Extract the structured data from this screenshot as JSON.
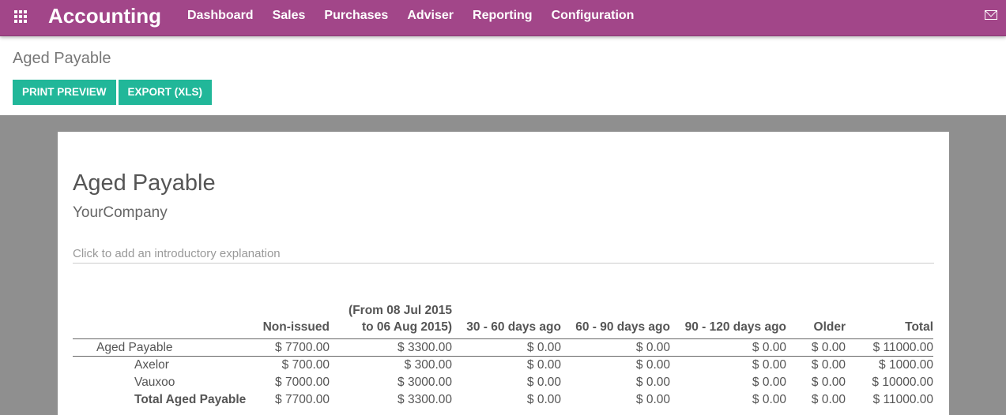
{
  "topbar": {
    "app": "Accounting",
    "menu": [
      "Dashboard",
      "Sales",
      "Purchases",
      "Adviser",
      "Reporting",
      "Configuration"
    ],
    "icons": [
      "apps-grid-icon",
      "mail-icon"
    ]
  },
  "page": {
    "title": "Aged Payable",
    "buttons": [
      "PRINT PREVIEW",
      "EXPORT (XLS)"
    ]
  },
  "report": {
    "title": "Aged Payable",
    "company": "YourCompany",
    "intro_placeholder": "Click to add an introductory explanation",
    "columns": [
      "",
      "Non-issued",
      "(From 08 Jul 2015 to 06 Aug 2015)",
      "30 - 60 days ago",
      "60 - 90 days ago",
      "90 - 120 days ago",
      "Older",
      "Total"
    ],
    "rows": [
      {
        "name": "Aged Payable",
        "values": [
          "$ 7700.00",
          "$ 3300.00",
          "$ 0.00",
          "$ 0.00",
          "$ 0.00",
          "$ 0.00",
          "$ 11000.00"
        ]
      },
      {
        "name": "Axelor",
        "values": [
          "$ 700.00",
          "$ 300.00",
          "$ 0.00",
          "$ 0.00",
          "$ 0.00",
          "$ 0.00",
          "$ 1000.00"
        ]
      },
      {
        "name": "Vauxoo",
        "values": [
          "$ 7000.00",
          "$ 3000.00",
          "$ 0.00",
          "$ 0.00",
          "$ 0.00",
          "$ 0.00",
          "$ 10000.00"
        ]
      },
      {
        "name": "Total Aged Payable",
        "values": [
          "$ 7700.00",
          "$ 3300.00",
          "$ 0.00",
          "$ 0.00",
          "$ 0.00",
          "$ 0.00",
          "$ 11000.00"
        ]
      }
    ]
  },
  "colors": {
    "brand": "#a24689",
    "button": "#21b799"
  }
}
